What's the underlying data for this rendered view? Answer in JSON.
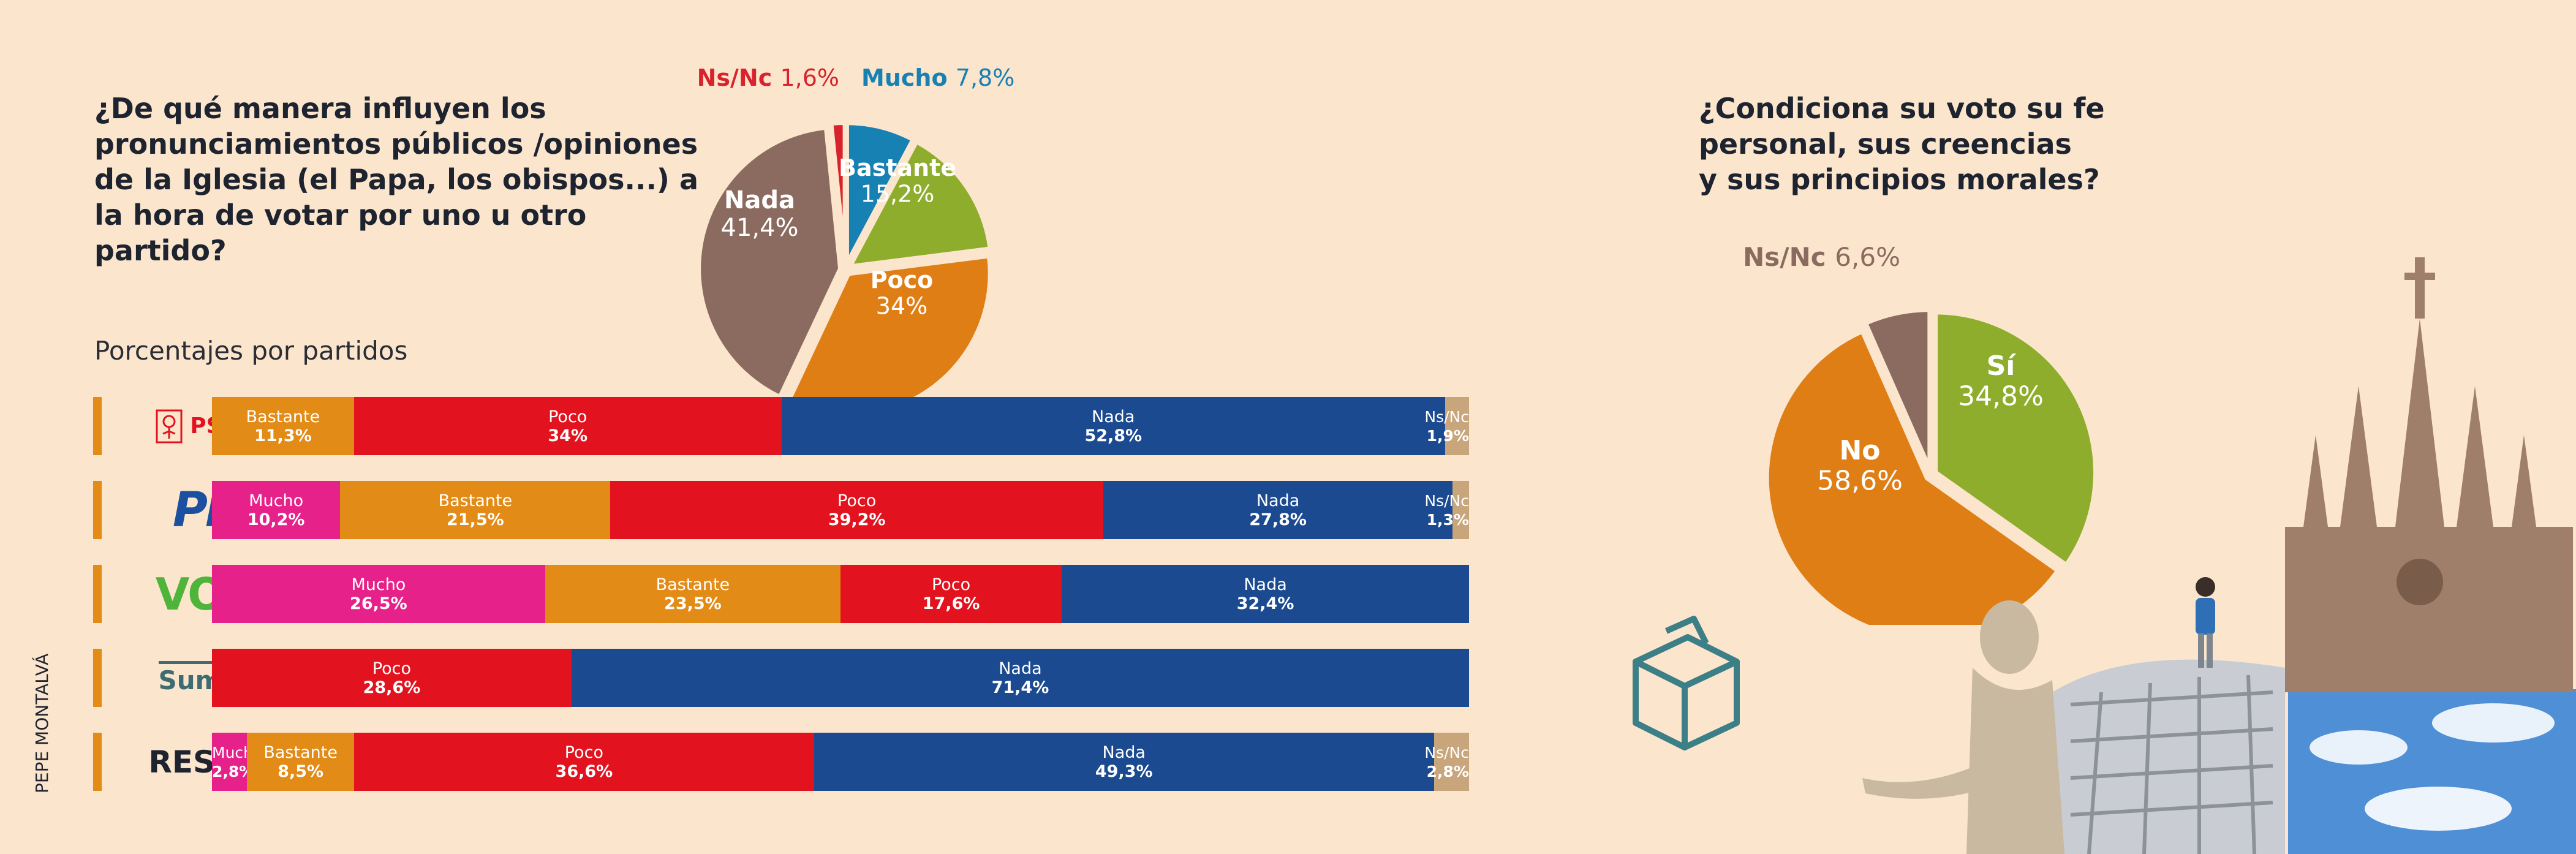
{
  "question1": "¿De qué manera influyen los pronunciamientos públicos /opiniones de la Iglesia (el Papa, los obispos...) a la hora de votar por uno u otro partido?",
  "question2_lines": [
    "¿Condiciona su voto su fe",
    "personal, sus creencias",
    "y sus principios morales?"
  ],
  "subtitle": "Porcentajes por partidos",
  "credit": "PEPE MONTALVÁ",
  "colors": {
    "Mucho": "#e6218a",
    "Bastante": "#e38b17",
    "Poco": "#e2131e",
    "Nada": "#1b4a91",
    "Ns/Nc": "#c8a57a"
  },
  "chart_data": [
    {
      "type": "pie",
      "slices": [
        {
          "label": "Mucho",
          "value_label": "7,8%",
          "value": 7.8,
          "color": "#1781b4"
        },
        {
          "label": "Bastante",
          "value_label": "15,2%",
          "value": 15.2,
          "color": "#8fad2d"
        },
        {
          "label": "Poco",
          "value_label": "34%",
          "value": 34,
          "color": "#e07e16"
        },
        {
          "label": "Nada",
          "value_label": "41,4%",
          "value": 41.4,
          "color": "#8b6b5f"
        },
        {
          "label": "Ns/Nc",
          "value_label": "1,6%",
          "value": 1.6,
          "color": "#d9232c"
        }
      ]
    },
    {
      "type": "bar",
      "orientation": "horizontal-stacked",
      "categories": [
        "PSOE",
        "PP",
        "VOX",
        "Sumar",
        "RESTO"
      ],
      "rows": [
        {
          "party": "PSOE",
          "segments": [
            {
              "label": "Bastante",
              "value": 11.3,
              "value_label": "11,3%"
            },
            {
              "label": "Poco",
              "value": 34,
              "value_label": "34%"
            },
            {
              "label": "Nada",
              "value": 52.8,
              "value_label": "52,8%"
            },
            {
              "label": "Ns/Nc",
              "value": 1.9,
              "value_label": "1,9%"
            }
          ]
        },
        {
          "party": "PP",
          "segments": [
            {
              "label": "Mucho",
              "value": 10.2,
              "value_label": "10,2%"
            },
            {
              "label": "Bastante",
              "value": 21.5,
              "value_label": "21,5%"
            },
            {
              "label": "Poco",
              "value": 39.2,
              "value_label": "39,2%"
            },
            {
              "label": "Nada",
              "value": 27.8,
              "value_label": "27,8%"
            },
            {
              "label": "Ns/Nc",
              "value": 1.3,
              "value_label": "1,3%"
            }
          ]
        },
        {
          "party": "VOX",
          "segments": [
            {
              "label": "Mucho",
              "value": 26.5,
              "value_label": "26,5%"
            },
            {
              "label": "Bastante",
              "value": 23.5,
              "value_label": "23,5%"
            },
            {
              "label": "Poco",
              "value": 17.6,
              "value_label": "17,6%"
            },
            {
              "label": "Nada",
              "value": 32.4,
              "value_label": "32,4%"
            }
          ]
        },
        {
          "party": "Sumar",
          "segments": [
            {
              "label": "Poco",
              "value": 28.6,
              "value_label": "28,6%"
            },
            {
              "label": "Nada",
              "value": 71.4,
              "value_label": "71,4%"
            }
          ]
        },
        {
          "party": "RESTO",
          "segments": [
            {
              "label": "Mucho",
              "value": 2.8,
              "value_label": "2,8%"
            },
            {
              "label": "Bastante",
              "value": 8.5,
              "value_label": "8,5%"
            },
            {
              "label": "Poco",
              "value": 36.6,
              "value_label": "36,6%"
            },
            {
              "label": "Nada",
              "value": 49.3,
              "value_label": "49,3%"
            },
            {
              "label": "Ns/Nc",
              "value": 2.8,
              "value_label": "2,8%"
            }
          ]
        }
      ]
    },
    {
      "type": "pie",
      "slices": [
        {
          "label": "Sí",
          "value_label": "34,8%",
          "value": 34.8,
          "color": "#8fad2d"
        },
        {
          "label": "No",
          "value_label": "58,6%",
          "value": 58.6,
          "color": "#e07e16"
        },
        {
          "label": "Ns/Nc",
          "value_label": "6,6%",
          "value": 6.6,
          "color": "#8b6b5f"
        }
      ]
    }
  ]
}
